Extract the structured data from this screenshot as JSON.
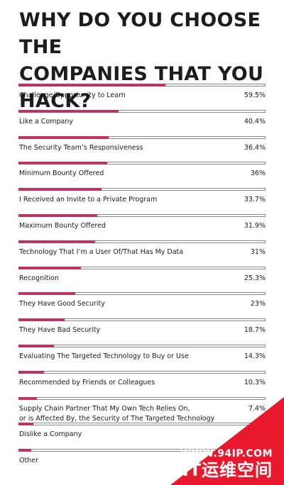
{
  "chart_data": {
    "type": "bar",
    "title": "WHY DO YOU CHOOSE THE\nCOMPANIES THAT YOU HACK?",
    "xlim": [
      0,
      100
    ],
    "colors": {
      "fill": "#c0325f",
      "track_border": "#8a8a8a"
    },
    "categories": [
      "Challenge/Opportunity to Learn",
      "Like a Company",
      "The Security Team’s Responsiveness",
      "Minimum Bounty Offered",
      "I Received an Invite to a Private Program",
      "Maximum Bounty Offered",
      "Technology That I’m a User Of/That Has My Data",
      "Recognition",
      "They Have Good Security",
      "They Have Bad Security",
      "Evaluating The Targeted Technology to Buy or Use",
      "Recommended by Friends or Colleagues",
      "Supply Chain Partner That My Own Tech Relies On,\nor is Affected By, the Security of The Targeted Technology",
      "Dislike a Company",
      "Other"
    ],
    "values": [
      59.5,
      40.4,
      36.4,
      36,
      33.7,
      31.9,
      31,
      25.3,
      23,
      18.7,
      14.3,
      10.3,
      7.4,
      5.9,
      5.3
    ],
    "value_labels": [
      "59.5%",
      "40.4%",
      "36.4%",
      "36%",
      "33.7%",
      "31.9%",
      "31%",
      "25.3%",
      "23%",
      "18.7%",
      "14.3%",
      "10.3%",
      "7.4%",
      "",
      ""
    ]
  },
  "watermark": {
    "url": "WWW.94IP.COM",
    "name": "IT运维空间",
    "color": "#e8192c"
  }
}
